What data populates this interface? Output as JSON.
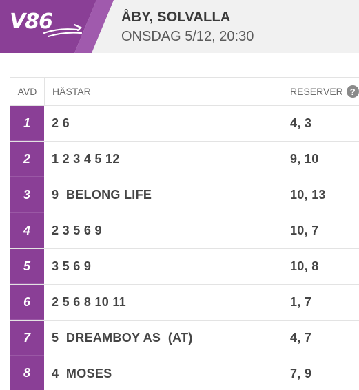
{
  "header": {
    "logo_text": "V86",
    "track": "ÅBY, SOLVALLA",
    "datetime": "ONSDAG 5/12, 20:30"
  },
  "table": {
    "col_avd": "AVD",
    "col_hastar": "HÄSTAR",
    "col_reserver": "RESERVER",
    "help_glyph": "?",
    "rows": [
      {
        "avd": "1",
        "hastar": "2 6",
        "reserver": "4, 3"
      },
      {
        "avd": "2",
        "hastar": "1 2 3 4 5 12",
        "reserver": "9, 10"
      },
      {
        "avd": "3",
        "hastar": "9  BELONG LIFE",
        "reserver": "10, 13"
      },
      {
        "avd": "4",
        "hastar": "2 3 5 6 9",
        "reserver": "10, 7"
      },
      {
        "avd": "5",
        "hastar": "3 5 6 9",
        "reserver": "10, 8"
      },
      {
        "avd": "6",
        "hastar": "2 5 6 8 10 11",
        "reserver": "1, 7"
      },
      {
        "avd": "7",
        "hastar": "5  DREAMBOY AS  (AT)",
        "reserver": "4, 7"
      },
      {
        "avd": "8",
        "hastar": "4  MOSES",
        "reserver": "7, 9"
      }
    ]
  },
  "colors": {
    "brand_purple": "#8a3f96",
    "brand_purple_light": "#a05aad",
    "header_bg": "#f1f1f1"
  }
}
